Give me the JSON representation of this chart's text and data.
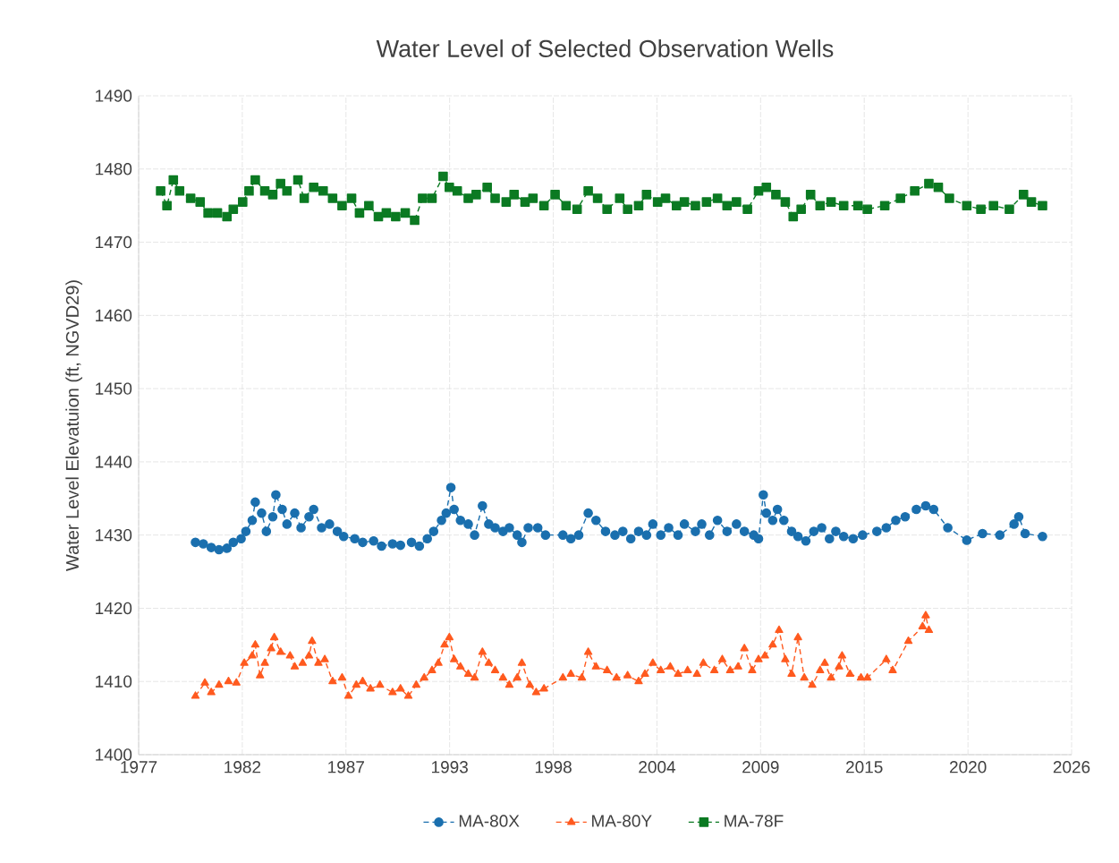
{
  "chart_data": {
    "type": "line",
    "title": "Water Level of Selected Observation Wells",
    "ylabel": "Water Level Elevatuion (ft, NGVD29)",
    "xlim": [
      "1977-01-01",
      "2026-04-16"
    ],
    "ylim": [
      1400,
      1490
    ],
    "xticks": [
      {
        "value": "1977-01-01",
        "label": "1977"
      },
      {
        "value": "1982-06-24",
        "label": "1982"
      },
      {
        "value": "1987-12-15",
        "label": "1987"
      },
      {
        "value": "1993-06-07",
        "label": "1993"
      },
      {
        "value": "1998-11-28",
        "label": "1998"
      },
      {
        "value": "2004-05-20",
        "label": "2004"
      },
      {
        "value": "2009-11-10",
        "label": "2009"
      },
      {
        "value": "2015-05-03",
        "label": "2015"
      },
      {
        "value": "2020-10-24",
        "label": "2020"
      },
      {
        "value": "2026-04-16",
        "label": "2026"
      }
    ],
    "yticks": [
      1400,
      1410,
      1420,
      1430,
      1440,
      1450,
      1460,
      1470,
      1480,
      1490
    ],
    "grid": true,
    "legend": "bottom",
    "line_style": "dashed",
    "series": [
      {
        "name": "MA-80X",
        "color": "#1a6fae",
        "marker": "circle",
        "x": [
          "1980-01",
          "1980-06",
          "1980-11",
          "1981-04",
          "1981-09",
          "1982-01",
          "1982-06",
          "1982-09",
          "1983-01",
          "1983-03",
          "1983-07",
          "1983-10",
          "1984-02",
          "1984-04",
          "1984-08",
          "1984-11",
          "1985-04",
          "1985-08",
          "1986-01",
          "1986-04",
          "1986-09",
          "1987-02",
          "1987-07",
          "1987-11",
          "1988-06",
          "1988-11",
          "1989-06",
          "1989-11",
          "1990-06",
          "1990-11",
          "1991-06",
          "1991-11",
          "1992-04",
          "1992-08",
          "1993-01",
          "1993-04",
          "1993-07",
          "1993-09",
          "1994-01",
          "1994-06",
          "1994-10",
          "1995-03",
          "1995-07",
          "1995-11",
          "1996-04",
          "1996-08",
          "1997-01",
          "1997-04",
          "1997-08",
          "1998-02",
          "1998-07",
          "1999-06",
          "1999-11",
          "2000-04",
          "2000-10",
          "2001-03",
          "2001-09",
          "2002-03",
          "2002-08",
          "2003-01",
          "2003-06",
          "2003-11",
          "2004-03",
          "2004-08",
          "2005-01",
          "2005-07",
          "2005-11",
          "2006-06",
          "2006-10",
          "2007-03",
          "2007-08",
          "2008-02",
          "2008-08",
          "2009-01",
          "2009-07",
          "2009-10",
          "2010-01",
          "2010-03",
          "2010-07",
          "2010-10",
          "2011-02",
          "2011-07",
          "2011-11",
          "2012-04",
          "2012-09",
          "2013-02",
          "2013-07",
          "2013-11",
          "2014-04",
          "2014-10",
          "2015-04",
          "2016-01",
          "2016-07",
          "2017-01",
          "2017-07",
          "2018-02",
          "2018-08",
          "2019-01",
          "2019-10",
          "2020-10",
          "2021-08",
          "2022-07",
          "2023-04",
          "2023-07",
          "2023-11",
          "2024-10"
        ],
        "values": [
          1429,
          1428.8,
          1428.3,
          1428,
          1428.2,
          1429,
          1429.5,
          1430.5,
          1432,
          1434.5,
          1433,
          1430.5,
          1432.5,
          1435.5,
          1433.5,
          1431.5,
          1433,
          1431,
          1432.5,
          1433.5,
          1431,
          1431.5,
          1430.5,
          1429.8,
          1429.5,
          1429,
          1429.2,
          1428.5,
          1428.8,
          1428.6,
          1429,
          1428.5,
          1429.5,
          1430.5,
          1432,
          1433,
          1436.5,
          1433.5,
          1432,
          1431.5,
          1430,
          1434,
          1431.5,
          1431,
          1430.5,
          1431,
          1430,
          1429,
          1431,
          1431,
          1430,
          1430,
          1429.5,
          1430,
          1433,
          1432,
          1430.5,
          1430,
          1430.5,
          1429.5,
          1430.5,
          1430,
          1431.5,
          1430,
          1431,
          1430,
          1431.5,
          1430.5,
          1431.5,
          1430,
          1432,
          1430.5,
          1431.5,
          1430.5,
          1430,
          1429.5,
          1435.5,
          1433,
          1432,
          1433.5,
          1432,
          1430.5,
          1429.8,
          1429.2,
          1430.5,
          1431,
          1429.5,
          1430.5,
          1429.8,
          1429.5,
          1430,
          1430.5,
          1431,
          1432,
          1432.5,
          1433.5,
          1434,
          1433.5,
          1431,
          1429.3,
          1430.2,
          1430,
          1431.5,
          1432.5,
          1430.2,
          1429.8
        ]
      },
      {
        "name": "MA-80Y",
        "color": "#ff5a1f",
        "marker": "triangle",
        "x": [
          "1980-01",
          "1980-07",
          "1980-11",
          "1981-04",
          "1981-10",
          "1982-03",
          "1982-08",
          "1983-01",
          "1983-03",
          "1983-06",
          "1983-09",
          "1984-01",
          "1984-03",
          "1984-07",
          "1985-01",
          "1985-04",
          "1985-09",
          "1986-01",
          "1986-03",
          "1986-07",
          "1986-11",
          "1987-04",
          "1987-10",
          "1988-02",
          "1988-07",
          "1988-11",
          "1989-04",
          "1989-10",
          "1990-06",
          "1990-11",
          "1991-04",
          "1991-09",
          "1992-02",
          "1992-07",
          "1992-11",
          "1993-03",
          "1993-06",
          "1993-09",
          "1994-01",
          "1994-06",
          "1994-10",
          "1995-03",
          "1995-07",
          "1995-11",
          "1996-04",
          "1996-08",
          "1997-01",
          "1997-04",
          "1997-09",
          "1998-01",
          "1998-06",
          "1999-06",
          "1999-11",
          "2000-06",
          "2000-10",
          "2001-03",
          "2001-10",
          "2002-04",
          "2002-11",
          "2003-06",
          "2003-10",
          "2004-03",
          "2004-08",
          "2005-02",
          "2005-07",
          "2006-01",
          "2006-07",
          "2006-11",
          "2007-06",
          "2007-11",
          "2008-04",
          "2008-09",
          "2009-01",
          "2009-06",
          "2009-10",
          "2010-02",
          "2010-07",
          "2010-11",
          "2011-03",
          "2011-07",
          "2011-11",
          "2012-03",
          "2012-08",
          "2013-01",
          "2013-04",
          "2013-08",
          "2014-01",
          "2014-03",
          "2014-08",
          "2015-03",
          "2015-07",
          "2016-07",
          "2016-11",
          "2017-09",
          "2018-06",
          "2018-08",
          "2018-10"
        ],
        "values": [
          1408,
          1409.8,
          1408.5,
          1409.5,
          1410,
          1409.8,
          1412.5,
          1413.5,
          1415,
          1410.8,
          1412.5,
          1414.5,
          1416,
          1414,
          1413.5,
          1412,
          1412.5,
          1413.5,
          1415.5,
          1412.5,
          1413,
          1410,
          1410.5,
          1408,
          1409.5,
          1410,
          1409,
          1409.5,
          1408.5,
          1409,
          1408,
          1409.5,
          1410.5,
          1411.5,
          1412.5,
          1415,
          1416,
          1413,
          1412,
          1411,
          1410.5,
          1414,
          1412.5,
          1411.5,
          1410.5,
          1409.5,
          1410.5,
          1412.5,
          1409.5,
          1408.5,
          1409,
          1410.5,
          1411,
          1410.5,
          1414,
          1412,
          1411.5,
          1410.5,
          1410.8,
          1410,
          1411,
          1412.5,
          1411.5,
          1412,
          1411,
          1411.5,
          1411,
          1412.5,
          1411.5,
          1413,
          1411.5,
          1412,
          1414.5,
          1411.5,
          1413,
          1413.5,
          1415,
          1417,
          1413,
          1411,
          1416,
          1410.5,
          1409.5,
          1411.5,
          1412.5,
          1410.5,
          1412,
          1413.5,
          1411,
          1410.5,
          1410.5,
          1413,
          1411.5,
          1415.5,
          1417.5,
          1419,
          1417
        ]
      },
      {
        "name": "MA-78F",
        "color": "#0b7a22",
        "marker": "square",
        "x": [
          "1978-03",
          "1978-07",
          "1978-11",
          "1979-03",
          "1979-10",
          "1980-04",
          "1980-09",
          "1981-03",
          "1981-09",
          "1982-01",
          "1982-07",
          "1982-11",
          "1983-03",
          "1983-09",
          "1984-02",
          "1984-07",
          "1984-11",
          "1985-06",
          "1985-10",
          "1986-04",
          "1986-10",
          "1987-04",
          "1987-10",
          "1988-04",
          "1988-09",
          "1989-03",
          "1989-09",
          "1990-02",
          "1990-08",
          "1991-02",
          "1991-08",
          "1992-01",
          "1992-07",
          "1993-02",
          "1993-06",
          "1993-11",
          "1994-06",
          "1994-11",
          "1995-06",
          "1995-11",
          "1996-06",
          "1996-11",
          "1997-06",
          "1997-11",
          "1998-06",
          "1999-01",
          "1999-08",
          "2000-03",
          "2000-10",
          "2001-04",
          "2001-10",
          "2002-06",
          "2002-11",
          "2003-06",
          "2003-11",
          "2004-06",
          "2004-11",
          "2005-06",
          "2005-11",
          "2006-06",
          "2007-01",
          "2007-08",
          "2008-02",
          "2008-08",
          "2009-03",
          "2009-10",
          "2010-03",
          "2010-09",
          "2011-03",
          "2011-08",
          "2012-01",
          "2012-07",
          "2013-01",
          "2013-08",
          "2014-04",
          "2015-01",
          "2015-07",
          "2016-06",
          "2017-04",
          "2018-01",
          "2018-10",
          "2019-04",
          "2019-11",
          "2020-10",
          "2021-07",
          "2022-03",
          "2023-01",
          "2023-10",
          "2024-03",
          "2024-10"
        ],
        "values": [
          1477,
          1475,
          1478.5,
          1477,
          1476,
          1475.5,
          1474,
          1474,
          1473.5,
          1474.5,
          1475.5,
          1477,
          1478.5,
          1477,
          1476.5,
          1478,
          1477,
          1478.5,
          1476,
          1477.5,
          1477,
          1476,
          1475,
          1476,
          1474,
          1475,
          1473.5,
          1474,
          1473.5,
          1474,
          1473,
          1476,
          1476,
          1479,
          1477.5,
          1477,
          1476,
          1476.5,
          1477.5,
          1476,
          1475.5,
          1476.5,
          1475.5,
          1476,
          1475,
          1476.5,
          1475,
          1474.5,
          1477,
          1476,
          1474.5,
          1476,
          1474.5,
          1475,
          1476.5,
          1475.5,
          1476,
          1475,
          1475.5,
          1475,
          1475.5,
          1476,
          1475,
          1475.5,
          1474.5,
          1477,
          1477.5,
          1476.5,
          1475.5,
          1473.5,
          1474.5,
          1476.5,
          1475,
          1475.5,
          1475,
          1475,
          1474.5,
          1475,
          1476,
          1477,
          1478,
          1477.5,
          1476,
          1475,
          1474.5,
          1475,
          1474.5,
          1476.5,
          1475.5,
          1475
        ]
      }
    ]
  }
}
